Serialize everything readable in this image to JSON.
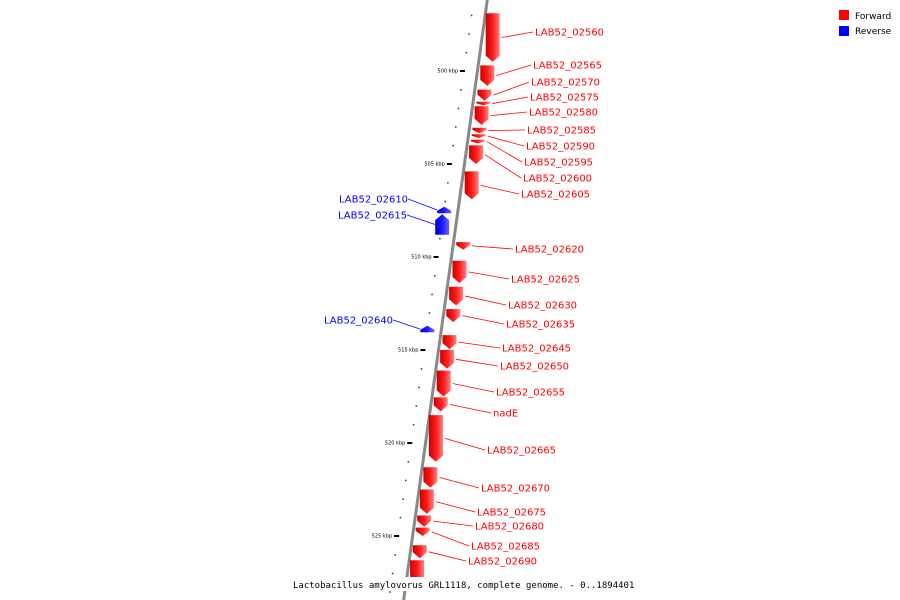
{
  "colors": {
    "forward": "#ff0000",
    "reverse": "#0000ff",
    "backbone": "#888888"
  },
  "legend": [
    {
      "label": "Forward",
      "color": "#ff0000"
    },
    {
      "label": "Reverse",
      "color": "#0000ff"
    }
  ],
  "caption": "Lactobacillus amylovorus GRL1118, complete genome. - 0..1894401",
  "scale_ticks": [
    {
      "kbp": 500,
      "label": "500 kbp"
    },
    {
      "kbp": 505,
      "label": "505 kbp"
    },
    {
      "kbp": 510,
      "label": "510 kbp"
    },
    {
      "kbp": 515,
      "label": "515 kbp"
    },
    {
      "kbp": 520,
      "label": "520 kbp"
    },
    {
      "kbp": 525,
      "label": "525 kbp"
    }
  ],
  "genes": [
    {
      "name": "LAB52_02560",
      "strand": "forward",
      "start_kbp": 496.9,
      "end_kbp": 499.5
    },
    {
      "name": "LAB52_02565",
      "strand": "forward",
      "start_kbp": 499.7,
      "end_kbp": 500.8
    },
    {
      "name": "LAB52_02570",
      "strand": "forward",
      "start_kbp": 501.0,
      "end_kbp": 501.6
    },
    {
      "name": "LAB52_02575",
      "strand": "forward",
      "start_kbp": 501.65,
      "end_kbp": 501.85
    },
    {
      "name": "LAB52_02580",
      "strand": "forward",
      "start_kbp": 501.9,
      "end_kbp": 502.9
    },
    {
      "name": "LAB52_02585",
      "strand": "forward",
      "start_kbp": 503.05,
      "end_kbp": 503.35
    },
    {
      "name": "LAB52_02590",
      "strand": "forward",
      "start_kbp": 503.4,
      "end_kbp": 503.6
    },
    {
      "name": "LAB52_02595",
      "strand": "forward",
      "start_kbp": 503.7,
      "end_kbp": 503.9
    },
    {
      "name": "LAB52_02600",
      "strand": "forward",
      "start_kbp": 504.0,
      "end_kbp": 505.0
    },
    {
      "name": "LAB52_02605",
      "strand": "forward",
      "start_kbp": 505.4,
      "end_kbp": 506.9
    },
    {
      "name": "LAB52_02610",
      "strand": "reverse",
      "start_kbp": 507.3,
      "end_kbp": 507.65
    },
    {
      "name": "LAB52_02615",
      "strand": "reverse",
      "start_kbp": 507.7,
      "end_kbp": 508.8
    },
    {
      "name": "LAB52_02620",
      "strand": "forward",
      "start_kbp": 509.2,
      "end_kbp": 509.6
    },
    {
      "name": "LAB52_02625",
      "strand": "forward",
      "start_kbp": 510.2,
      "end_kbp": 511.4
    },
    {
      "name": "LAB52_02630",
      "strand": "forward",
      "start_kbp": 511.6,
      "end_kbp": 512.6
    },
    {
      "name": "LAB52_02635",
      "strand": "forward",
      "start_kbp": 512.8,
      "end_kbp": 513.5
    },
    {
      "name": "LAB52_02640",
      "strand": "reverse",
      "start_kbp": 513.7,
      "end_kbp": 514.05
    },
    {
      "name": "LAB52_02645",
      "strand": "forward",
      "start_kbp": 514.2,
      "end_kbp": 514.95
    },
    {
      "name": "LAB52_02650",
      "strand": "forward",
      "start_kbp": 515.0,
      "end_kbp": 516.0
    },
    {
      "name": "LAB52_02655",
      "strand": "forward",
      "start_kbp": 516.1,
      "end_kbp": 517.5
    },
    {
      "name": "nadE",
      "strand": "forward",
      "start_kbp": 517.55,
      "end_kbp": 518.3
    },
    {
      "name": "LAB52_02665",
      "strand": "forward",
      "start_kbp": 518.5,
      "end_kbp": 521.0
    },
    {
      "name": "LAB52_02670",
      "strand": "forward",
      "start_kbp": 521.3,
      "end_kbp": 522.4
    },
    {
      "name": "LAB52_02675",
      "strand": "forward",
      "start_kbp": 522.5,
      "end_kbp": 523.8
    },
    {
      "name": "LAB52_02680",
      "strand": "forward",
      "start_kbp": 523.9,
      "end_kbp": 524.5
    },
    {
      "name": "LAB52_02685",
      "strand": "forward",
      "start_kbp": 524.55,
      "end_kbp": 525.0
    },
    {
      "name": "LAB52_02690",
      "strand": "forward",
      "start_kbp": 525.5,
      "end_kbp": 526.2
    },
    {
      "name": "",
      "strand": "forward",
      "start_kbp": 526.3,
      "end_kbp": 527.5
    }
  ]
}
